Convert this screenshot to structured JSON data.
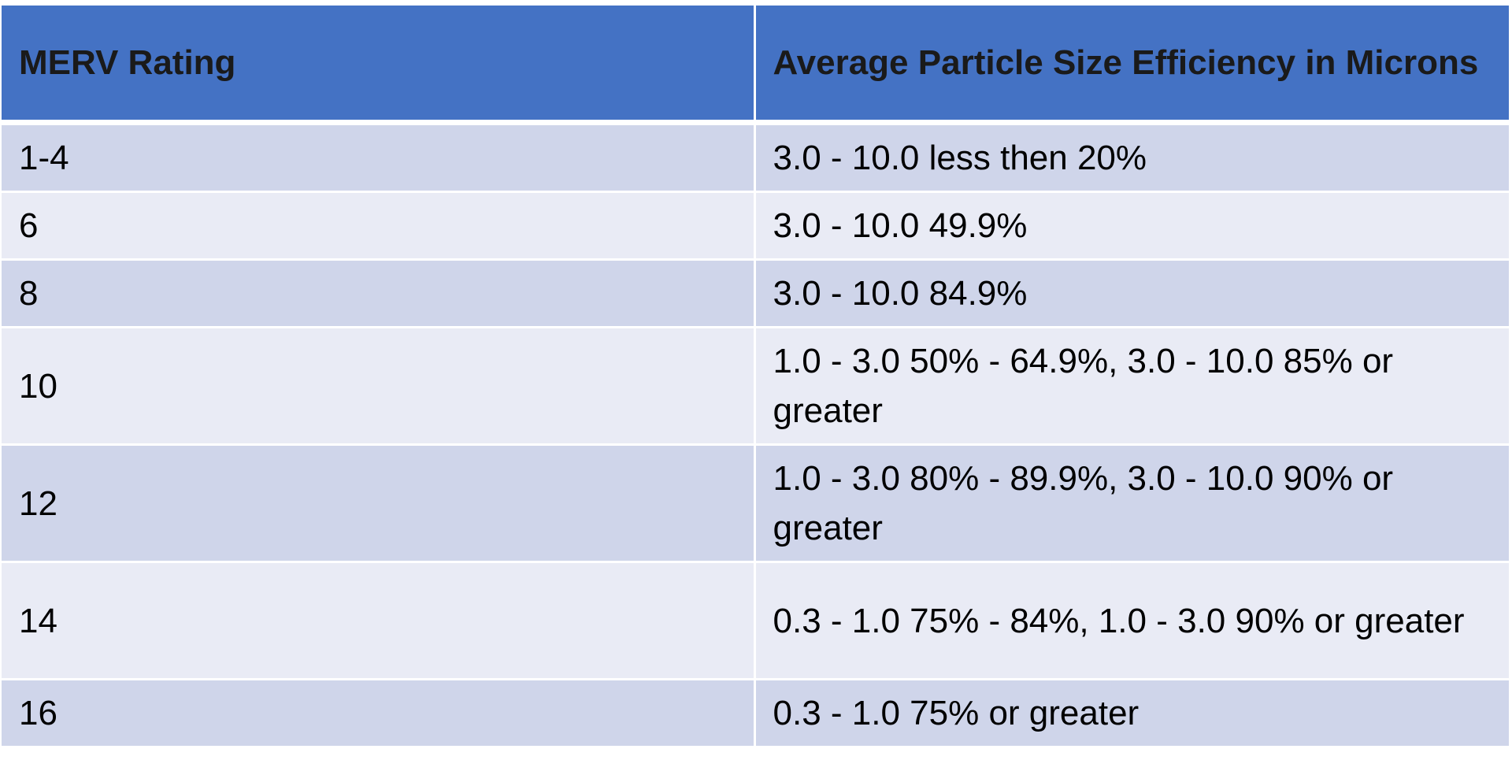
{
  "table": {
    "headers": [
      "MERV Rating",
      "Average Particle Size Efficiency in Microns"
    ],
    "rows": [
      [
        "1-4",
        "3.0 - 10.0 less then 20%"
      ],
      [
        "6",
        "3.0 - 10.0 49.9%"
      ],
      [
        "8",
        "3.0 - 10.0 84.9%"
      ],
      [
        "10",
        "1.0 - 3.0 50% - 64.9%, 3.0 - 10.0 85% or greater"
      ],
      [
        "12",
        "1.0 - 3.0 80% - 89.9%, 3.0 - 10.0 90% or greater"
      ],
      [
        "14",
        "0.3 - 1.0 75% - 84%, 1.0 - 3.0 90% or greater"
      ],
      [
        "16",
        "0.3 - 1.0 75% or greater"
      ]
    ]
  },
  "colors": {
    "header_background": "#4472c4",
    "row_band_dark": "#cfd5ea",
    "row_band_light": "#e9ebf5"
  }
}
